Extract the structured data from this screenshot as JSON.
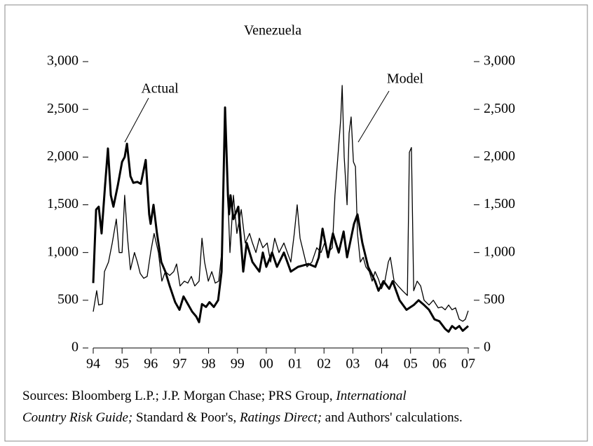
{
  "chart_data": {
    "type": "line",
    "title": "Venezuela",
    "xlim": [
      94,
      107
    ],
    "xticks": [
      94,
      95,
      96,
      97,
      98,
      99,
      {
        "value": 100,
        "label": "00"
      },
      {
        "value": 101,
        "label": "01"
      },
      {
        "value": 102,
        "label": "02"
      },
      {
        "value": 103,
        "label": "03"
      },
      {
        "value": 104,
        "label": "04"
      },
      {
        "value": 105,
        "label": "05"
      },
      {
        "value": 106,
        "label": "06"
      },
      {
        "value": 107,
        "label": "07"
      }
    ],
    "ylim": [
      0,
      3000
    ],
    "yticks": [
      0,
      500,
      {
        "value": 1000,
        "label": "1,000"
      },
      {
        "value": 1500,
        "label": "1,500"
      },
      {
        "value": 2000,
        "label": "2,000"
      },
      {
        "value": 2500,
        "label": "2,500"
      },
      {
        "value": 3000,
        "label": "3,000"
      }
    ],
    "y2lim": [
      0,
      3000
    ],
    "y2ticks": [
      0,
      500,
      {
        "value": 1000,
        "label": "1,000"
      },
      {
        "value": 1500,
        "label": "1,500"
      },
      {
        "value": 2000,
        "label": "2,000"
      },
      {
        "value": 2500,
        "label": "2,500"
      },
      {
        "value": 3000,
        "label": "3,000"
      }
    ],
    "series": [
      {
        "name": "Actual",
        "color": "#000000",
        "width": 3,
        "x": [
          94.0,
          94.1,
          94.19,
          94.29,
          94.41,
          94.51,
          94.61,
          94.7,
          94.85,
          95.0,
          95.09,
          95.17,
          95.29,
          95.39,
          95.53,
          95.65,
          95.82,
          95.94,
          95.99,
          96.09,
          96.21,
          96.36,
          96.5,
          96.65,
          96.84,
          96.99,
          97.13,
          97.28,
          97.43,
          97.57,
          97.67,
          97.77,
          97.91,
          98.03,
          98.18,
          98.33,
          98.45,
          98.57,
          98.67,
          98.71,
          98.76,
          98.86,
          99.03,
          99.2,
          99.32,
          99.52,
          99.76,
          99.88,
          100.0,
          100.2,
          100.37,
          100.61,
          100.85,
          101.1,
          101.46,
          101.7,
          101.82,
          101.95,
          102.14,
          102.31,
          102.51,
          102.68,
          102.8,
          103.04,
          103.16,
          103.33,
          103.53,
          103.77,
          103.89,
          104.06,
          104.26,
          104.38,
          104.62,
          104.86,
          105.11,
          105.28,
          105.47,
          105.64,
          105.83,
          106.0,
          106.2,
          106.32,
          106.44,
          106.56,
          106.69,
          106.81,
          107.0
        ],
        "values": [
          680,
          1450,
          1480,
          1200,
          1700,
          2090,
          1600,
          1480,
          1700,
          1950,
          2000,
          2140,
          1800,
          1730,
          1740,
          1720,
          1970,
          1400,
          1300,
          1500,
          1200,
          900,
          800,
          650,
          480,
          400,
          540,
          460,
          380,
          330,
          270,
          460,
          430,
          480,
          430,
          500,
          800,
          2520,
          1600,
          1400,
          1600,
          1350,
          1480,
          800,
          1100,
          900,
          800,
          1000,
          850,
          1000,
          850,
          1000,
          800,
          850,
          880,
          850,
          950,
          1250,
          950,
          1200,
          1000,
          1220,
          950,
          1300,
          1400,
          1100,
          850,
          700,
          600,
          700,
          620,
          700,
          500,
          400,
          450,
          500,
          450,
          400,
          300,
          280,
          200,
          170,
          230,
          200,
          230,
          180,
          230
        ]
      },
      {
        "name": "Model",
        "color": "#000000",
        "width": 1.3,
        "x": [
          94.0,
          94.12,
          94.19,
          94.32,
          94.39,
          94.53,
          94.66,
          94.8,
          94.9,
          95.0,
          95.09,
          95.19,
          95.29,
          95.43,
          95.53,
          95.63,
          95.75,
          95.87,
          95.99,
          96.11,
          96.26,
          96.38,
          96.5,
          96.65,
          96.79,
          96.89,
          97.01,
          97.16,
          97.28,
          97.4,
          97.52,
          97.67,
          97.77,
          97.86,
          97.99,
          98.11,
          98.23,
          98.35,
          98.47,
          98.57,
          98.64,
          98.74,
          98.86,
          98.98,
          99.13,
          99.27,
          99.42,
          99.52,
          99.64,
          99.76,
          99.88,
          100.03,
          100.15,
          100.29,
          100.44,
          100.61,
          100.73,
          100.85,
          100.97,
          101.07,
          101.17,
          101.29,
          101.41,
          101.58,
          101.75,
          101.9,
          102.02,
          102.14,
          102.29,
          102.38,
          102.48,
          102.58,
          102.63,
          102.7,
          102.8,
          102.87,
          102.94,
          103.02,
          103.09,
          103.16,
          103.26,
          103.36,
          103.45,
          103.57,
          103.67,
          103.77,
          103.89,
          103.99,
          104.11,
          104.23,
          104.3,
          104.43,
          104.57,
          104.72,
          104.89,
          104.96,
          105.03,
          105.11,
          105.23,
          105.35,
          105.47,
          105.64,
          105.79,
          105.96,
          106.08,
          106.2,
          106.32,
          106.44,
          106.56,
          106.69,
          106.81,
          106.9,
          107.0
        ],
        "values": [
          380,
          600,
          450,
          460,
          800,
          900,
          1100,
          1350,
          1000,
          1000,
          1600,
          1150,
          820,
          1000,
          900,
          780,
          730,
          750,
          1000,
          1200,
          1000,
          700,
          800,
          760,
          800,
          880,
          650,
          700,
          680,
          750,
          650,
          700,
          1150,
          900,
          700,
          800,
          680,
          700,
          1050,
          2400,
          1800,
          1000,
          1600,
          1200,
          1450,
          1100,
          1200,
          1100,
          1000,
          1150,
          1050,
          1100,
          900,
          1150,
          1000,
          1100,
          1000,
          900,
          1200,
          1500,
          1150,
          1000,
          850,
          900,
          1050,
          1000,
          1100,
          1000,
          1050,
          1600,
          2000,
          2400,
          2750,
          2000,
          1500,
          2250,
          2420,
          1950,
          1900,
          1200,
          900,
          950,
          850,
          800,
          700,
          800,
          720,
          620,
          700,
          900,
          950,
          700,
          650,
          600,
          550,
          2050,
          2100,
          600,
          700,
          650,
          500,
          450,
          500,
          420,
          430,
          400,
          450,
          400,
          420,
          300,
          280,
          300,
          390
        ]
      }
    ],
    "annotations": [
      "Actual",
      "Model"
    ],
    "note": [
      "Sources: Bloomberg L.P.; J.P. Morgan Chase; PRS Group, ",
      "International",
      "Country Risk Guide;",
      " Standard & Poor's, ",
      "Ratings Direct;",
      " and Authors' calculations."
    ]
  }
}
